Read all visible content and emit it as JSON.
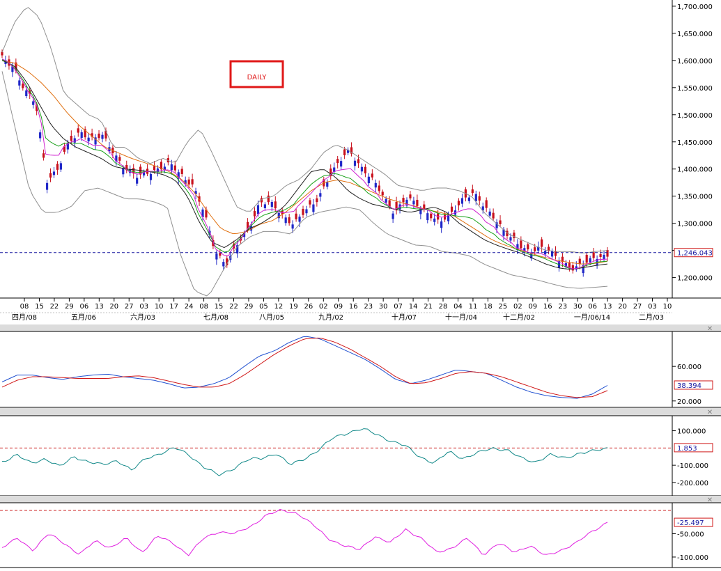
{
  "badge": "DAILY",
  "colors": {
    "bull": "#2028c8",
    "bear": "#c8101c",
    "bollinger": "#909090",
    "ma_black": "#202020",
    "ma_green": "#18a018",
    "ma_magenta": "#d020d0",
    "ma_orange": "#e07010",
    "kd_k": "#2050d0",
    "kd_d": "#d01818",
    "cci": "#108888",
    "wr": "#e020e0",
    "ref_line": "#cc2020",
    "current_line": "#1818a0",
    "panel_bar": "#dcdcdc"
  },
  "close_label": "✕",
  "chart_data": [
    {
      "type": "candlestick",
      "title": "DAILY",
      "ylim": [
        1165,
        1705
      ],
      "y_ticks": [
        1200,
        1250,
        1300,
        1350,
        1400,
        1450,
        1500,
        1550,
        1600,
        1650,
        1700
      ],
      "y_tick_labels": [
        "1,200.000",
        "1,250.000",
        "1,300.000",
        "1,350.000",
        "1,400.000",
        "1,450.000",
        "1,500.000",
        "1,550.000",
        "1,600.000",
        "1,650.000",
        "1,700.000"
      ],
      "current_value": 1246.043,
      "current_label": "1,246.043",
      "x_day_labels": [
        "08",
        "15",
        "22",
        "29",
        "06",
        "13",
        "20",
        "27",
        "03",
        "10",
        "17",
        "24",
        "08",
        "15",
        "22",
        "29",
        "05",
        "12",
        "19",
        "26",
        "02",
        "09",
        "16",
        "23",
        "30",
        "07",
        "14",
        "21",
        "28",
        "04",
        "11",
        "18",
        "25",
        "02",
        "09",
        "16",
        "23",
        "30",
        "06",
        "13",
        "20",
        "27",
        "03",
        "10"
      ],
      "x_month_labels": [
        "四月/08",
        "五月/06",
        "六月/03",
        "七月/08",
        "八月/05",
        "九月/02",
        "十月/07",
        "十一月/04",
        "十二月/02",
        "一月/06/14",
        "二月/03"
      ],
      "series": [
        {
          "name": "close",
          "anchors": [
            1605,
            1590,
            1545,
            1520,
            1380,
            1400,
            1450,
            1470,
            1455,
            1460,
            1430,
            1400,
            1385,
            1395,
            1400,
            1408,
            1390,
            1370,
            1320,
            1250,
            1225,
            1260,
            1290,
            1340,
            1335,
            1315,
            1300,
            1320,
            1340,
            1380,
            1410,
            1435,
            1405,
            1380,
            1350,
            1320,
            1345,
            1335,
            1320,
            1300,
            1315,
            1345,
            1355,
            1330,
            1310,
            1280,
            1260,
            1250,
            1255,
            1245,
            1230,
            1215,
            1225,
            1240,
            1240
          ],
          "open_offsets": [
            8,
            -6,
            10,
            -12,
            14,
            -8,
            9,
            -10,
            6,
            -7,
            11,
            -9,
            8,
            -13,
            7,
            -6,
            12,
            -10,
            9,
            -14,
            8,
            -7,
            10,
            -9,
            13,
            -8,
            6,
            -11,
            9,
            -7,
            12,
            -8,
            10,
            -9,
            7,
            -12,
            8,
            -6,
            11,
            -9,
            13,
            -7,
            8,
            -10,
            9,
            -6,
            12,
            -8,
            7,
            -9,
            10,
            -11,
            8,
            -7,
            9
          ]
        },
        {
          "name": "bollinger_upper",
          "anchors": [
            1615,
            1670,
            1700,
            1680,
            1620,
            1540,
            1520,
            1500,
            1490,
            1440,
            1440,
            1420,
            1410,
            1420,
            1410,
            1450,
            1475,
            1430,
            1380,
            1330,
            1320,
            1345,
            1350,
            1370,
            1380,
            1400,
            1430,
            1445,
            1435,
            1420,
            1405,
            1390,
            1370,
            1365,
            1360,
            1365,
            1365,
            1360,
            1350,
            1320,
            1300,
            1280,
            1270,
            1260,
            1250,
            1248,
            1248,
            1245,
            1248,
            1250
          ]
        },
        {
          "name": "bollinger_lower",
          "anchors": [
            1580,
            1470,
            1360,
            1320,
            1320,
            1330,
            1360,
            1365,
            1355,
            1345,
            1345,
            1340,
            1330,
            1240,
            1175,
            1165,
            1210,
            1255,
            1275,
            1285,
            1285,
            1280,
            1310,
            1320,
            1325,
            1330,
            1325,
            1300,
            1280,
            1270,
            1260,
            1258,
            1248,
            1245,
            1240,
            1225,
            1215,
            1205,
            1200,
            1195,
            1188,
            1182,
            1180,
            1182,
            1184
          ]
        },
        {
          "name": "ma_black",
          "anchors": [
            1600,
            1590,
            1560,
            1520,
            1480,
            1455,
            1440,
            1430,
            1420,
            1405,
            1400,
            1398,
            1395,
            1390,
            1380,
            1350,
            1300,
            1265,
            1255,
            1270,
            1290,
            1300,
            1315,
            1335,
            1365,
            1395,
            1400,
            1385,
            1360,
            1345,
            1335,
            1330,
            1325,
            1320,
            1325,
            1330,
            1320,
            1300,
            1285,
            1270,
            1260,
            1252,
            1245,
            1235,
            1225,
            1218,
            1215,
            1218,
            1222,
            1225
          ]
        },
        {
          "name": "ma_orange",
          "anchors": [
            1600,
            1595,
            1580,
            1560,
            1535,
            1505,
            1480,
            1460,
            1440,
            1430,
            1420,
            1412,
            1405,
            1395,
            1380,
            1355,
            1320,
            1290,
            1280,
            1285,
            1298,
            1305,
            1320,
            1340,
            1360,
            1375,
            1380,
            1375,
            1365,
            1355,
            1345,
            1338,
            1332,
            1325,
            1320,
            1315,
            1300,
            1285,
            1270,
            1260,
            1252,
            1245,
            1238,
            1232,
            1228,
            1225,
            1226,
            1230
          ]
        }
      ]
    },
    {
      "type": "line",
      "title": "",
      "ylim": [
        15,
        98
      ],
      "y_ticks": [
        20,
        60
      ],
      "y_tick_labels": [
        "20.000",
        "60.000"
      ],
      "current_value": 38.394,
      "current_label": "38.394",
      "series": [
        {
          "name": "",
          "anchors": [
            42,
            50,
            50,
            47,
            45,
            48,
            50,
            51,
            48,
            46,
            44,
            40,
            35,
            36,
            40,
            47,
            60,
            72,
            78,
            88,
            95,
            92,
            84,
            76,
            68,
            57,
            45,
            40,
            44,
            50,
            56,
            54,
            52,
            44,
            36,
            30,
            26,
            24,
            23,
            28,
            38
          ]
        },
        {
          "name": "",
          "anchors": [
            36,
            44,
            48,
            48,
            47,
            46,
            46,
            46,
            48,
            49,
            47,
            43,
            39,
            36,
            36,
            40,
            50,
            62,
            74,
            84,
            92,
            93,
            88,
            80,
            70,
            60,
            48,
            40,
            41,
            46,
            52,
            54,
            52,
            48,
            42,
            36,
            30,
            26,
            24,
            25,
            32
          ]
        }
      ]
    },
    {
      "type": "line",
      "title": "",
      "ylim": [
        -265,
        175
      ],
      "y_ticks": [
        -200,
        -100,
        100
      ],
      "y_tick_labels": [
        "-200.000",
        "-100.000",
        "100.000"
      ],
      "ref_value": 0,
      "current_value": 1.853,
      "current_label": "1.853",
      "series": [
        {
          "name": "",
          "anchors": [
            -80,
            -40,
            -90,
            -60,
            -110,
            -50,
            -80,
            -100,
            -70,
            -130,
            -60,
            -30,
            0,
            -40,
            -110,
            -160,
            -120,
            -70,
            -60,
            -30,
            -100,
            -60,
            -10,
            60,
            90,
            110,
            80,
            40,
            10,
            -50,
            -90,
            -20,
            -60,
            -30,
            0,
            -10,
            -60,
            -80,
            -40,
            -60,
            -30,
            -20,
            0
          ]
        }
      ]
    },
    {
      "type": "line",
      "title": "",
      "ylim": [
        -118,
        12
      ],
      "y_ticks": [
        -100,
        -50
      ],
      "y_tick_labels": [
        "-100.000",
        "-50.000"
      ],
      "ref_value": 0,
      "current_value": -25.497,
      "current_label": "-25.497",
      "series": [
        {
          "name": "",
          "anchors": [
            -80,
            -60,
            -85,
            -50,
            -70,
            -95,
            -65,
            -80,
            -60,
            -90,
            -55,
            -70,
            -95,
            -60,
            -45,
            -50,
            -35,
            -10,
            0,
            -5,
            -30,
            -60,
            -75,
            -85,
            -55,
            -70,
            -40,
            -60,
            -90,
            -80,
            -60,
            -95,
            -70,
            -90,
            -75,
            -98,
            -85,
            -70,
            -45,
            -25
          ]
        }
      ]
    }
  ]
}
